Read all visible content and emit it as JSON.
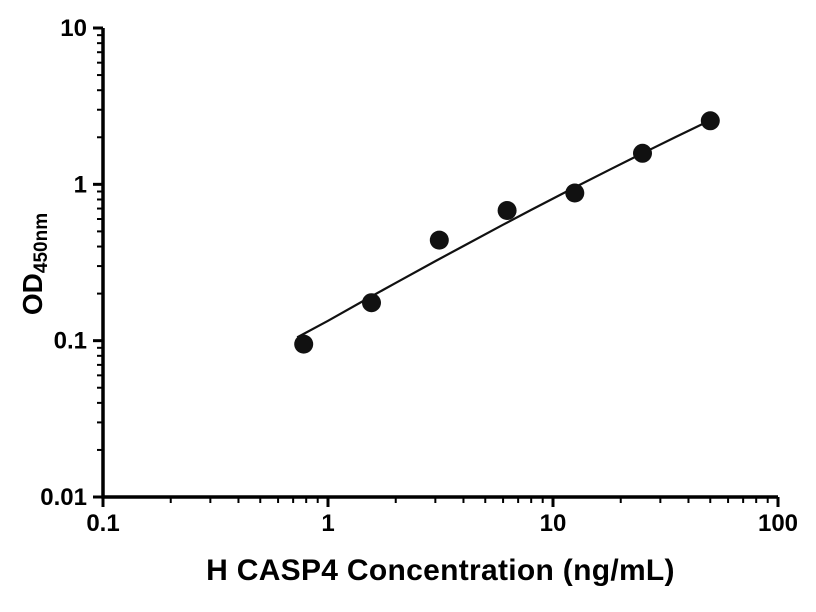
{
  "figure": {
    "background": "#ffffff",
    "axis_color": "#000000",
    "marker_color": "#111111",
    "line_color": "#111111"
  },
  "chart_data": {
    "type": "scatter",
    "title": "",
    "xlabel": "H CASP4 Concentration (ng/mL)",
    "ylabel_main": "OD",
    "ylabel_subscript": "450nm",
    "x_scale": "log",
    "y_scale": "log",
    "xlim": [
      0.1,
      100
    ],
    "ylim": [
      0.01,
      10
    ],
    "x_tick_values": [
      0.1,
      1,
      10,
      100
    ],
    "x_tick_labels": [
      "0.1",
      "1",
      "10",
      "100"
    ],
    "y_tick_values": [
      0.01,
      0.1,
      1,
      10
    ],
    "y_tick_labels": [
      "0.01",
      "0.1",
      "1",
      "10"
    ],
    "minor_ticks": true,
    "grid": false,
    "legend": "none",
    "series": [
      {
        "name": "fit-line",
        "type": "line",
        "color": "#111111",
        "points": [
          {
            "x": 0.73,
            "y": 0.105
          },
          {
            "x": 1.0,
            "y": 0.134
          },
          {
            "x": 1.5,
            "y": 0.186
          },
          {
            "x": 2.0,
            "y": 0.234
          },
          {
            "x": 3.0,
            "y": 0.323
          },
          {
            "x": 4.0,
            "y": 0.403
          },
          {
            "x": 6.0,
            "y": 0.552
          },
          {
            "x": 8.0,
            "y": 0.686
          },
          {
            "x": 12.0,
            "y": 0.928
          },
          {
            "x": 18.0,
            "y": 1.247
          },
          {
            "x": 25.0,
            "y": 1.58
          },
          {
            "x": 35.0,
            "y": 2.005
          },
          {
            "x": 50.0,
            "y": 2.569
          }
        ]
      },
      {
        "name": "standard-curve-points",
        "type": "scatter",
        "marker": "filled-circle",
        "color": "#111111",
        "points": [
          {
            "x": 0.78,
            "y": 0.095
          },
          {
            "x": 1.56,
            "y": 0.175
          },
          {
            "x": 3.125,
            "y": 0.44
          },
          {
            "x": 6.25,
            "y": 0.68
          },
          {
            "x": 12.5,
            "y": 0.88
          },
          {
            "x": 25,
            "y": 1.58
          },
          {
            "x": 50,
            "y": 2.55
          }
        ]
      }
    ]
  }
}
